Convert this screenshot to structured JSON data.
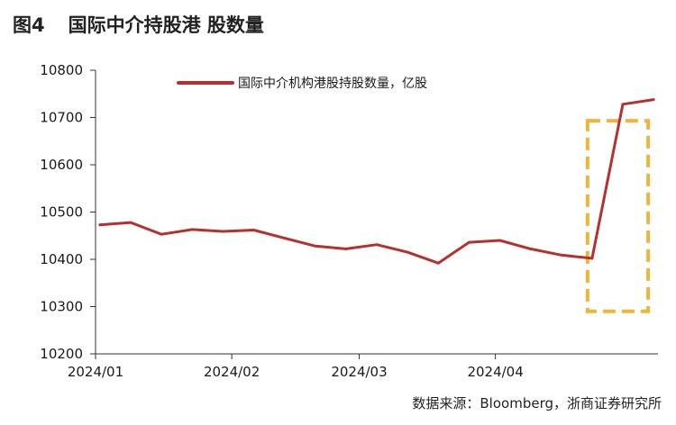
{
  "figure": {
    "number": "图4",
    "title": "国际中介持股港 股数量",
    "source": "数据来源：Bloomberg，浙商证券研究所"
  },
  "colors": {
    "line": "#b7312c",
    "highlight_box": "#f0b43a",
    "axis": "#333333"
  },
  "chart_data": {
    "type": "line",
    "title": "",
    "xlabel": "",
    "ylabel": "",
    "ylim": [
      10200,
      10800
    ],
    "yticks": [
      10800,
      10700,
      10600,
      10500,
      10400,
      10300,
      10200
    ],
    "xticks": [
      "2024/01",
      "2024/02",
      "2024/03",
      "2024/04"
    ],
    "x": [
      "2024-01-02",
      "2024-01-09",
      "2024-01-16",
      "2024-01-23",
      "2024-01-30",
      "2024-02-06",
      "2024-02-13",
      "2024-02-20",
      "2024-02-27",
      "2024-03-05",
      "2024-03-12",
      "2024-03-19",
      "2024-03-26",
      "2024-04-02",
      "2024-04-09",
      "2024-04-16",
      "2024-04-23",
      "2024-04-30",
      "2024-05-07"
    ],
    "series": [
      {
        "name": "国际中介机构港股持股数量，亿股",
        "values": [
          10473,
          10478,
          10453,
          10463,
          10459,
          10462,
          10445,
          10428,
          10422,
          10431,
          10415,
          10392,
          10436,
          10440,
          10422,
          10409,
          10402,
          10728,
          10738
        ]
      }
    ],
    "grid": false,
    "legend_position": "top-center",
    "annotations": [
      {
        "type": "dashed-box",
        "x_start": "2024-04-23",
        "x_end": "2024-05-07",
        "y_min": 10290,
        "y_max": 10693
      }
    ]
  }
}
